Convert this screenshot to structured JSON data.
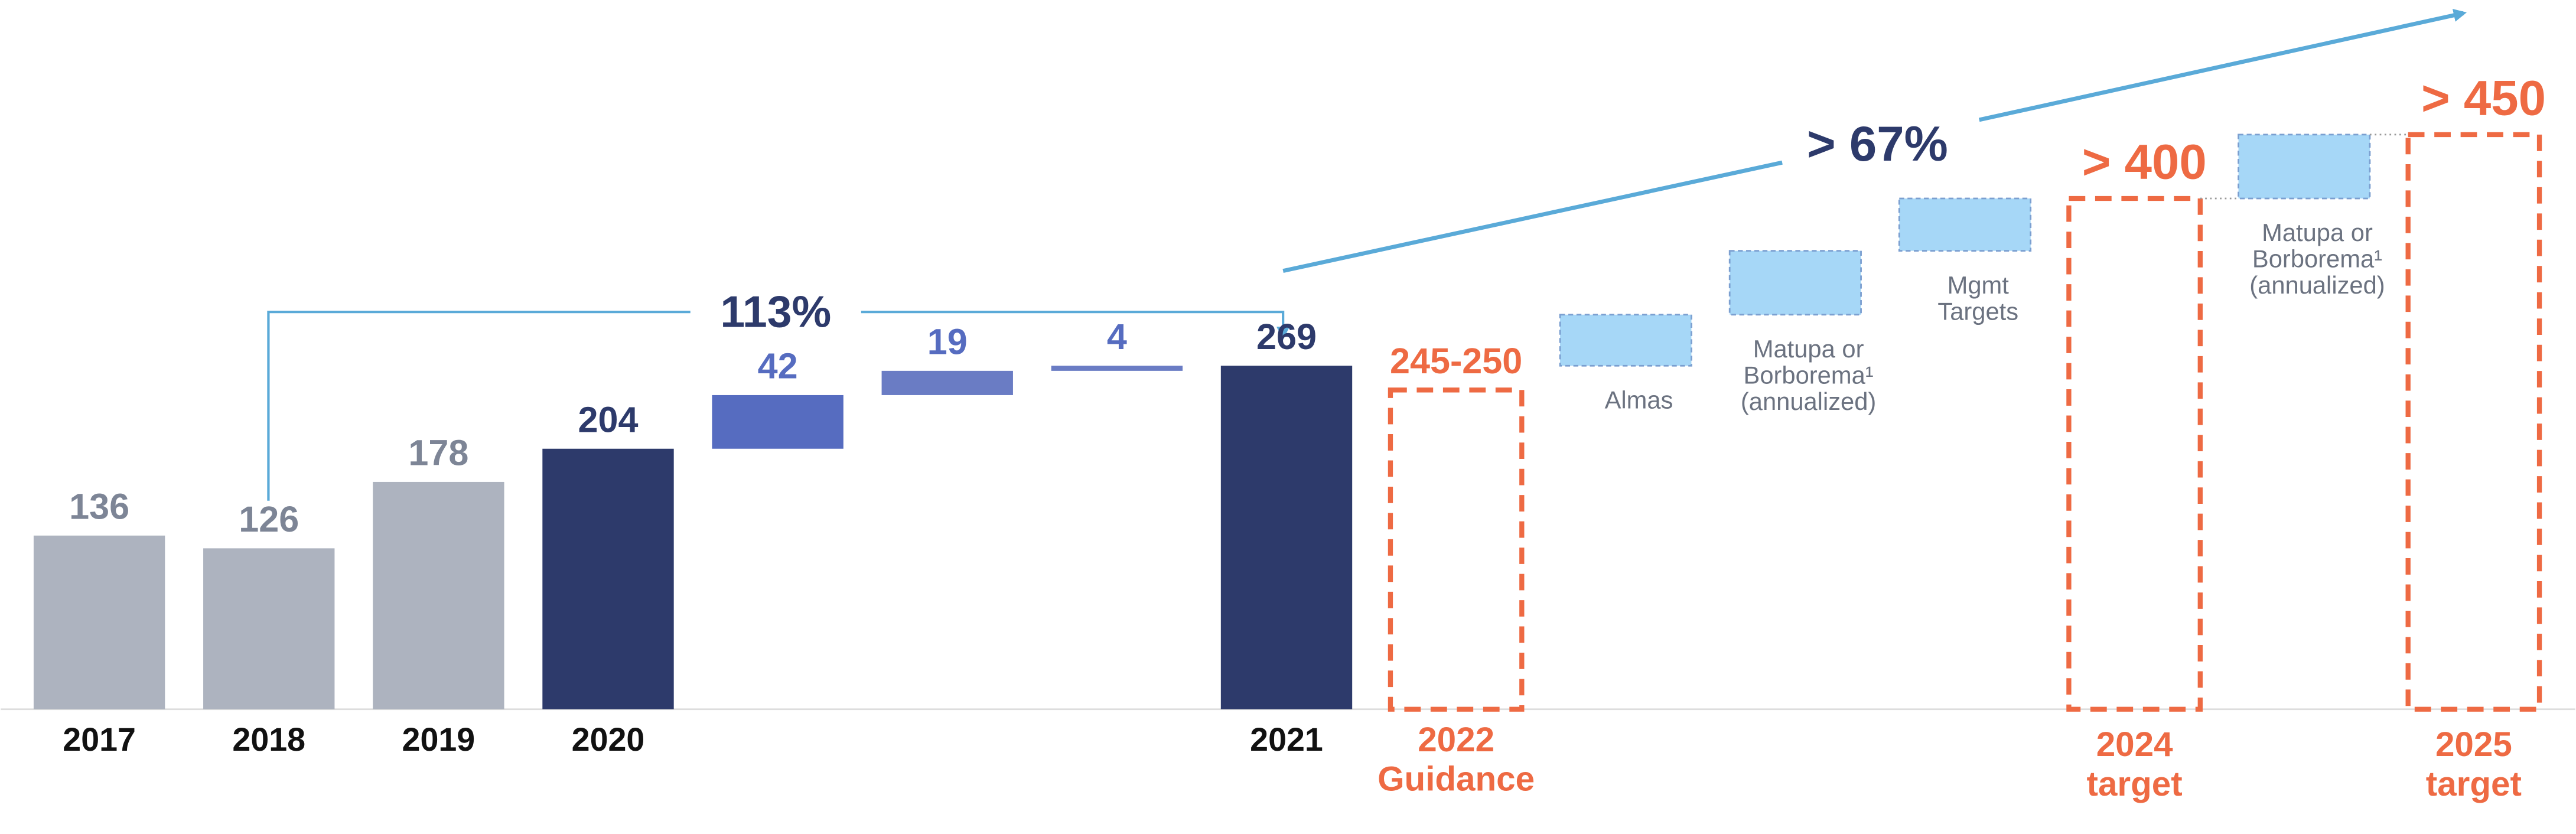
{
  "chart_data": {
    "type": "waterfall",
    "categories": [
      [
        "2017"
      ],
      [
        "2018"
      ],
      [
        "2019"
      ],
      [
        "2020"
      ],
      null,
      null,
      null,
      [
        "2021"
      ],
      [
        "2022",
        "Guidance"
      ],
      [
        "Almas"
      ],
      [
        "Matupa or",
        "Borborema¹",
        "(annualized)"
      ],
      [
        "Mgmt",
        "Targets"
      ],
      [
        "2024",
        "target"
      ],
      [
        "Matupa or",
        "Borborema¹",
        "(annualized)"
      ],
      [
        "2025",
        "target"
      ]
    ],
    "kinds": [
      "total",
      "total",
      "total",
      "total",
      "increase",
      "increase",
      "increase",
      "total",
      "guidance",
      "estimate",
      "estimate",
      "estimate",
      "target",
      "estimate",
      "target"
    ],
    "values": [
      136,
      126,
      178,
      204,
      42,
      19,
      4,
      269,
      250,
      40,
      50,
      41,
      400,
      50,
      450
    ],
    "value_labels": [
      null,
      null,
      null,
      null,
      null,
      null,
      null,
      null,
      "245-250",
      null,
      null,
      null,
      "> 400",
      null,
      "> 450"
    ],
    "colors": [
      "#adb3bf",
      "#adb3bf",
      "#adb3bf",
      "#2d3a6b",
      "#566cc0",
      "#6a7cc4",
      "#6a7cc4",
      "#2d3a6b",
      "#ee6a43",
      "#a6d7f7",
      "#a6d7f7",
      "#a6d7f7",
      "#ee6a43",
      "#a6d7f7",
      "#ee6a43"
    ],
    "label_colors": [
      "#7d8596",
      "#7d8596",
      "#7d8596",
      "#2d3a6b",
      "#566cc0",
      "#566cc0",
      "#566cc0",
      "#2d3a6b",
      "#ee6a43",
      null,
      null,
      null,
      "#ee6a43",
      null,
      "#ee6a43"
    ],
    "ylim": [
      0,
      450
    ],
    "annotations": [
      {
        "text": "113%"
      },
      {
        "text": "> 67%"
      }
    ]
  }
}
